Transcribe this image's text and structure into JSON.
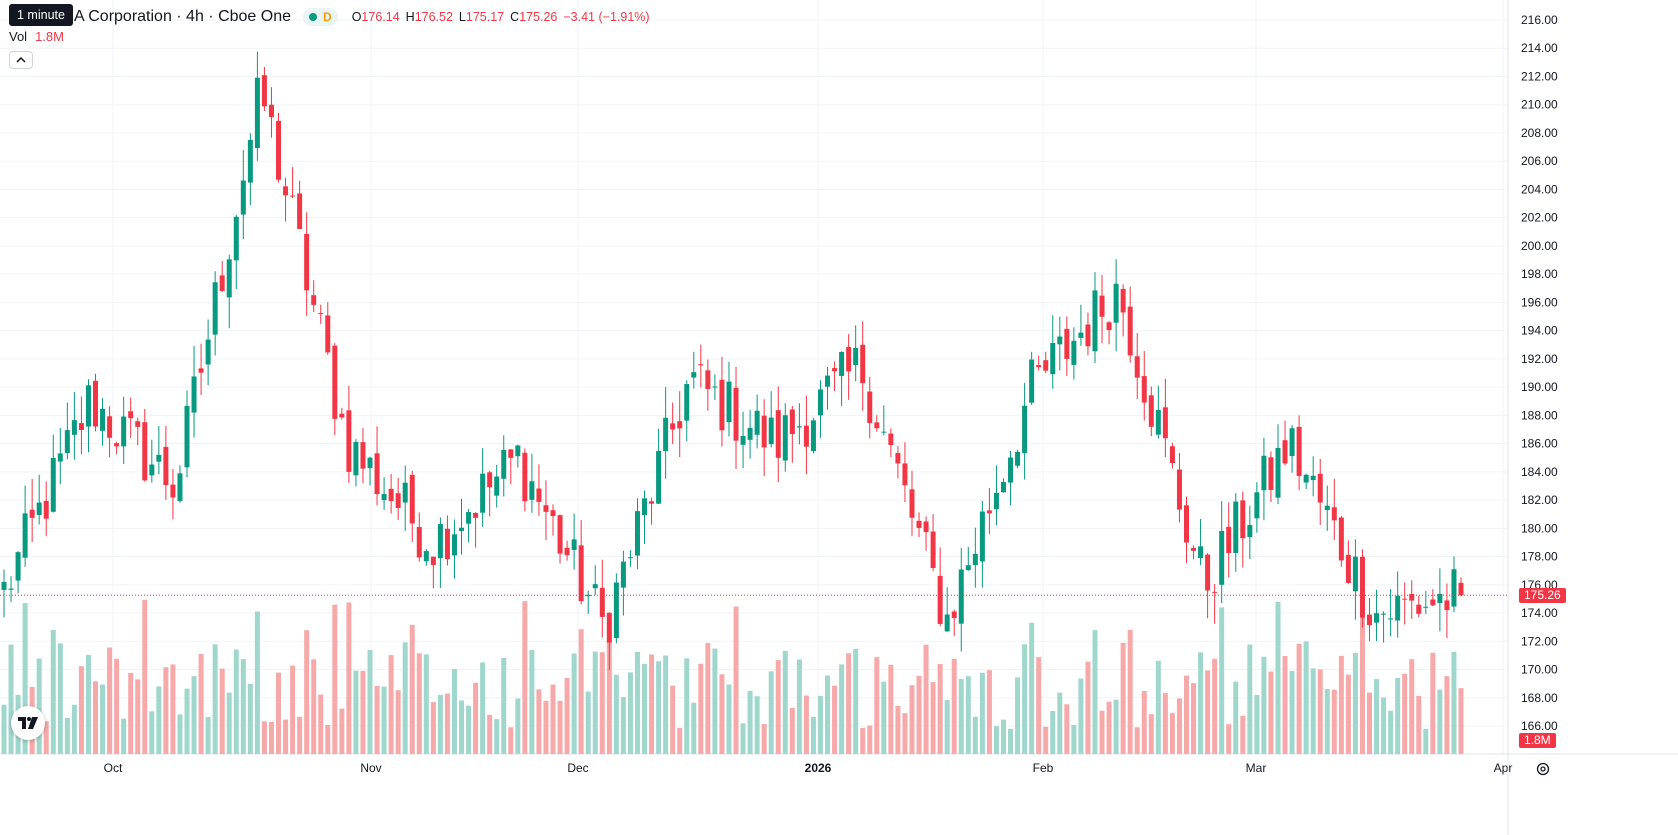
{
  "interval_tooltip": "1 minute",
  "symbol_title": "A Corporation · 4h · Cboe One",
  "delay_badge": "D",
  "ohlc": {
    "open_label": "O",
    "open": "176.14",
    "high_label": "H",
    "high": "176.52",
    "low_label": "L",
    "low": "175.17",
    "close_label": "C",
    "close": "175.26",
    "change": "−3.41 (−1.91%)"
  },
  "volume": {
    "label": "Vol",
    "value": "1.8M"
  },
  "last_price_label": "175.26",
  "last_volume_label": "1.8M",
  "icons": {
    "collapse": "chevron-up-icon",
    "logo": "tradingview-logo-icon",
    "settings": "gear-icon",
    "status": "market-status-dot-icon"
  },
  "colors": {
    "up": "#089981",
    "down": "#f23645",
    "up_volume": "#9fd7cd",
    "down_volume": "#f7a9a9"
  },
  "chart_data": {
    "type": "candlestick",
    "y_axis": {
      "ticks": [
        "216.00",
        "214.00",
        "212.00",
        "210.00",
        "208.00",
        "206.00",
        "204.00",
        "202.00",
        "200.00",
        "198.00",
        "196.00",
        "194.00",
        "192.00",
        "190.00",
        "188.00",
        "186.00",
        "184.00",
        "182.00",
        "180.00",
        "178.00",
        "176.00",
        "174.00",
        "172.00",
        "170.00",
        "168.00",
        "166.00"
      ],
      "range": [
        165,
        217
      ]
    },
    "x_axis": {
      "ticks": [
        "Oct",
        "Nov",
        "Dec",
        "2026",
        "Feb",
        "Mar",
        "Apr"
      ]
    },
    "last_price": 175.26,
    "grid": true,
    "approx_close_path": [
      [
        175.5,
        "start"
      ],
      [
        189.0,
        "mid Oct"
      ],
      [
        183.0,
        "late Oct"
      ],
      [
        211.0,
        "end Oct"
      ],
      [
        186.0,
        "early Nov"
      ],
      [
        179.0,
        "late Nov"
      ],
      [
        185.0,
        "early Dec"
      ],
      [
        173.0,
        "mid Dec"
      ],
      [
        190.5,
        "late Dec"
      ],
      [
        186.0,
        "early Jan"
      ],
      [
        191.5,
        "late Jan"
      ],
      [
        173.5,
        "early Feb"
      ],
      [
        190.0,
        "mid Feb"
      ],
      [
        197.0,
        "late Feb"
      ],
      [
        176.0,
        "early Mar"
      ],
      [
        186.0,
        "mid Mar"
      ],
      [
        174.0,
        "late Mar"
      ],
      [
        175.26,
        "end"
      ]
    ]
  }
}
